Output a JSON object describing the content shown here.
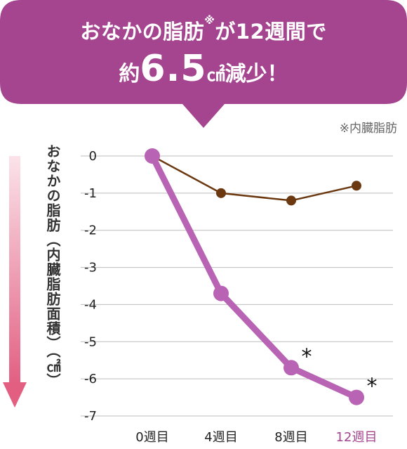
{
  "headline": {
    "line1_main": "おなかの脂肪",
    "line1_mark": "※",
    "line1_rest": "が12週間で",
    "line2_pre": "約",
    "line2_value": "6.5",
    "line2_unit": "㎠",
    "line2_post": "減少！"
  },
  "footnote": "※内臓脂肪",
  "colors": {
    "banner": "#a5458f",
    "test_series": "#b863b3",
    "control_series": "#6b3810",
    "arrow_top": "#fbe3ea",
    "arrow_bottom": "#e25f82"
  },
  "chart_data": {
    "type": "line",
    "categories": [
      "0週目",
      "4週目",
      "8週目",
      "12週目"
    ],
    "highlight_category": "12週目",
    "ylabel": "おなかの脂肪（内臓脂肪面積）（㎠）",
    "ylim": [
      -7,
      0
    ],
    "yticks": [
      "0",
      "-1",
      "-2",
      "-3",
      "-4",
      "-5",
      "-6",
      "-7"
    ],
    "grid": true,
    "series": [
      {
        "values": [
          0,
          -1.0,
          -1.2,
          -0.8
        ],
        "color": "#6b3810"
      },
      {
        "values": [
          0,
          -3.7,
          -5.7,
          -6.5
        ],
        "color": "#b863b3",
        "significance": [
          false,
          false,
          true,
          true
        ],
        "marker": "*"
      }
    ]
  }
}
